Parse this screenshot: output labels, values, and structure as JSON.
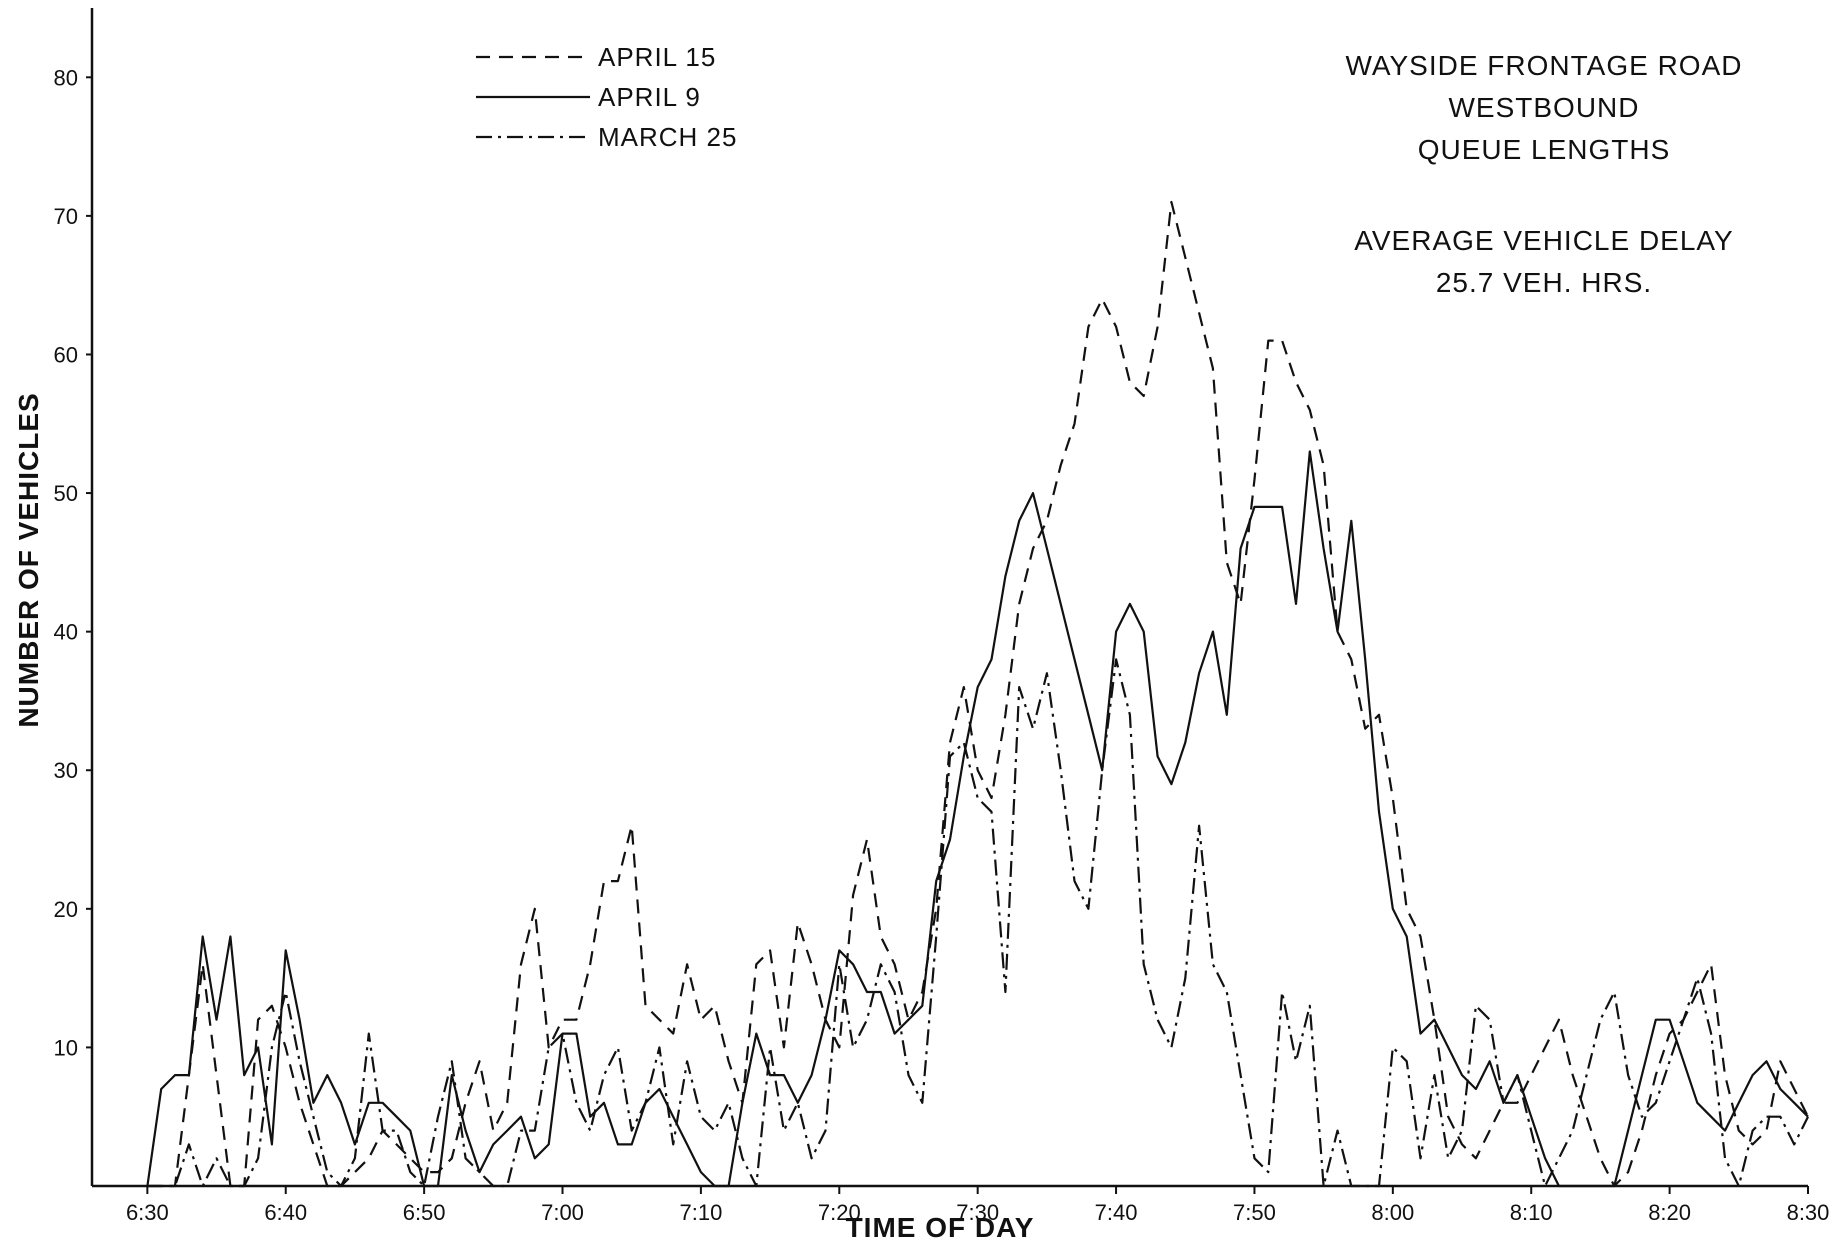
{
  "chart_data": {
    "type": "line",
    "title": "WAYSIDE FRONTAGE ROAD WESTBOUND QUEUE LENGTHS",
    "annotation": {
      "title_lines": [
        "WAYSIDE FRONTAGE ROAD",
        "WESTBOUND",
        "QUEUE LENGTHS"
      ],
      "delay_lines": [
        "AVERAGE VEHICLE DELAY",
        "25.7 VEH. HRS."
      ]
    },
    "xlabel": "TIME OF DAY",
    "ylabel": "NUMBER OF VEHICLES",
    "xlim": [
      "6:26",
      "8:30"
    ],
    "ylim": [
      0,
      85
    ],
    "x_ticks": [
      "6:30",
      "6:40",
      "6:50",
      "7:00",
      "7:10",
      "7:20",
      "7:30",
      "7:40",
      "7:50",
      "8:00",
      "8:10",
      "8:20",
      "8:30"
    ],
    "y_ticks": [
      10,
      20,
      30,
      40,
      50,
      60,
      70,
      80
    ],
    "grid": false,
    "legend_position": "top-left",
    "series": [
      {
        "name": "APRIL 15",
        "style": "dashed",
        "x": [
          "6:30",
          "6:31",
          "6:32",
          "6:33",
          "6:34",
          "6:35",
          "6:36",
          "6:37",
          "6:38",
          "6:39",
          "6:40",
          "6:41",
          "6:42",
          "6:43",
          "6:44",
          "6:45",
          "6:46",
          "6:47",
          "6:48",
          "6:49",
          "6:50",
          "6:51",
          "6:52",
          "6:53",
          "6:54",
          "6:55",
          "6:56",
          "6:57",
          "6:58",
          "6:59",
          "7:00",
          "7:01",
          "7:02",
          "7:03",
          "7:04",
          "7:05",
          "7:06",
          "7:07",
          "7:08",
          "7:09",
          "7:10",
          "7:11",
          "7:12",
          "7:13",
          "7:14",
          "7:15",
          "7:16",
          "7:17",
          "7:18",
          "7:19",
          "7:20",
          "7:21",
          "7:22",
          "7:23",
          "7:24",
          "7:25",
          "7:26",
          "7:27",
          "7:28",
          "7:29",
          "7:30",
          "7:31",
          "7:32",
          "7:33",
          "7:34",
          "7:35",
          "7:36",
          "7:37",
          "7:38",
          "7:39",
          "7:40",
          "7:41",
          "7:42",
          "7:43",
          "7:44",
          "7:45",
          "7:46",
          "7:47",
          "7:48",
          "7:49",
          "7:50",
          "7:51",
          "7:52",
          "7:53",
          "7:54",
          "7:55",
          "7:56",
          "7:57",
          "7:58",
          "7:59",
          "8:00",
          "8:01",
          "8:02",
          "8:03",
          "8:04",
          "8:05",
          "8:06",
          "8:07",
          "8:08",
          "8:09",
          "8:10",
          "8:11",
          "8:12",
          "8:13",
          "8:14",
          "8:15",
          "8:16",
          "8:17",
          "8:18",
          "8:19",
          "8:20",
          "8:21",
          "8:22",
          "8:23",
          "8:24",
          "8:25",
          "8:26",
          "8:27",
          "8:28",
          "8:29",
          "8:30"
        ],
        "values": [
          0,
          0,
          0,
          8,
          16,
          8,
          0,
          0,
          12,
          13,
          10,
          6,
          3,
          0,
          0,
          1,
          2,
          4,
          3,
          2,
          1,
          1,
          2,
          6,
          9,
          4,
          6,
          16,
          20,
          10,
          12,
          12,
          16,
          22,
          22,
          26,
          13,
          12,
          11,
          16,
          12,
          13,
          9,
          6,
          16,
          17,
          10,
          19,
          16,
          12,
          10,
          21,
          25,
          18,
          16,
          12,
          14,
          20,
          32,
          36,
          30,
          28,
          34,
          42,
          46,
          48,
          52,
          55,
          62,
          64,
          62,
          58,
          57,
          62,
          71,
          67,
          63,
          59,
          45,
          42,
          51,
          61,
          61,
          58,
          56,
          52,
          40,
          38,
          33,
          34,
          28,
          20,
          18,
          12,
          5,
          3,
          2,
          4,
          6,
          6,
          8,
          10,
          12,
          8,
          5,
          2,
          0,
          1,
          4,
          8,
          11,
          12,
          14,
          16,
          8,
          4,
          3,
          4,
          9,
          7,
          5
        ]
      },
      {
        "name": "APRIL 9",
        "style": "solid",
        "x": [
          "6:30",
          "6:31",
          "6:32",
          "6:33",
          "6:34",
          "6:35",
          "6:36",
          "6:37",
          "6:38",
          "6:39",
          "6:40",
          "6:41",
          "6:42",
          "6:43",
          "6:44",
          "6:45",
          "6:46",
          "6:47",
          "6:48",
          "6:49",
          "6:50",
          "6:51",
          "6:52",
          "6:53",
          "6:54",
          "6:55",
          "6:56",
          "6:57",
          "6:58",
          "6:59",
          "7:00",
          "7:01",
          "7:02",
          "7:03",
          "7:04",
          "7:05",
          "7:06",
          "7:07",
          "7:08",
          "7:09",
          "7:10",
          "7:11",
          "7:12",
          "7:13",
          "7:14",
          "7:15",
          "7:16",
          "7:17",
          "7:18",
          "7:19",
          "7:20",
          "7:21",
          "7:22",
          "7:23",
          "7:24",
          "7:25",
          "7:26",
          "7:27",
          "7:28",
          "7:29",
          "7:30",
          "7:31",
          "7:32",
          "7:33",
          "7:34",
          "7:35",
          "7:36",
          "7:37",
          "7:38",
          "7:39",
          "7:40",
          "7:41",
          "7:42",
          "7:43",
          "7:44",
          "7:45",
          "7:46",
          "7:47",
          "7:48",
          "7:49",
          "7:50",
          "7:51",
          "7:52",
          "7:53",
          "7:54",
          "7:55",
          "7:56",
          "7:57",
          "7:58",
          "7:59",
          "8:00",
          "8:01",
          "8:02",
          "8:03",
          "8:04",
          "8:05",
          "8:06",
          "8:07",
          "8:08",
          "8:09",
          "8:10",
          "8:11",
          "8:12",
          "8:13",
          "8:14",
          "8:15",
          "8:16",
          "8:17",
          "8:18",
          "8:19",
          "8:20",
          "8:21",
          "8:22",
          "8:23",
          "8:24",
          "8:25",
          "8:26",
          "8:27",
          "8:28",
          "8:29",
          "8:30"
        ],
        "values": [
          0,
          7,
          8,
          8,
          18,
          12,
          18,
          8,
          10,
          3,
          17,
          12,
          6,
          8,
          6,
          3,
          6,
          6,
          5,
          4,
          0,
          0,
          8,
          4,
          1,
          3,
          4,
          5,
          2,
          3,
          11,
          11,
          5,
          6,
          3,
          3,
          6,
          7,
          5,
          3,
          1,
          0,
          0,
          6,
          11,
          8,
          8,
          6,
          8,
          12,
          17,
          16,
          14,
          14,
          11,
          12,
          13,
          22,
          25,
          31,
          36,
          38,
          44,
          48,
          50,
          46,
          42,
          38,
          34,
          30,
          40,
          42,
          40,
          31,
          29,
          32,
          37,
          40,
          34,
          46,
          49,
          49,
          49,
          42,
          53,
          46,
          40,
          48,
          38,
          27,
          20,
          18,
          11,
          12,
          10,
          8,
          7,
          9,
          6,
          8,
          5,
          2,
          0,
          0,
          0,
          0,
          0,
          4,
          8,
          12,
          12,
          9,
          6,
          5,
          4,
          6,
          8,
          9,
          7,
          6,
          5
        ]
      },
      {
        "name": "MARCH 25",
        "style": "dash-dot",
        "x": [
          "6:30",
          "6:31",
          "6:32",
          "6:33",
          "6:34",
          "6:35",
          "6:36",
          "6:37",
          "6:38",
          "6:39",
          "6:40",
          "6:41",
          "6:42",
          "6:43",
          "6:44",
          "6:45",
          "6:46",
          "6:47",
          "6:48",
          "6:49",
          "6:50",
          "6:51",
          "6:52",
          "6:53",
          "6:54",
          "6:55",
          "6:56",
          "6:57",
          "6:58",
          "6:59",
          "7:00",
          "7:01",
          "7:02",
          "7:03",
          "7:04",
          "7:05",
          "7:06",
          "7:07",
          "7:08",
          "7:09",
          "7:10",
          "7:11",
          "7:12",
          "7:13",
          "7:14",
          "7:15",
          "7:16",
          "7:17",
          "7:18",
          "7:19",
          "7:20",
          "7:21",
          "7:22",
          "7:23",
          "7:24",
          "7:25",
          "7:26",
          "7:27",
          "7:28",
          "7:29",
          "7:30",
          "7:31",
          "7:32",
          "7:33",
          "7:34",
          "7:35",
          "7:36",
          "7:37",
          "7:38",
          "7:39",
          "7:40",
          "7:41",
          "7:42",
          "7:43",
          "7:44",
          "7:45",
          "7:46",
          "7:47",
          "7:48",
          "7:49",
          "7:50",
          "7:51",
          "7:52",
          "7:53",
          "7:54",
          "7:55",
          "7:56",
          "7:57",
          "7:58",
          "7:59",
          "8:00",
          "8:01",
          "8:02",
          "8:03",
          "8:04",
          "8:05",
          "8:06",
          "8:07",
          "8:08",
          "8:09",
          "8:10",
          "8:11",
          "8:12",
          "8:13",
          "8:14",
          "8:15",
          "8:16",
          "8:17",
          "8:18",
          "8:19",
          "8:20",
          "8:21",
          "8:22",
          "8:23",
          "8:24",
          "8:25",
          "8:26",
          "8:27",
          "8:28",
          "8:29",
          "8:30"
        ],
        "values": [
          0,
          0,
          0,
          3,
          0,
          2,
          0,
          0,
          2,
          10,
          14,
          9,
          5,
          1,
          0,
          2,
          11,
          4,
          4,
          1,
          0,
          5,
          9,
          2,
          1,
          0,
          0,
          4,
          4,
          10,
          11,
          6,
          4,
          8,
          10,
          4,
          6,
          10,
          3,
          9,
          5,
          4,
          6,
          2,
          0,
          10,
          4,
          6,
          2,
          4,
          16,
          10,
          12,
          16,
          14,
          8,
          6,
          18,
          31,
          32,
          28,
          27,
          14,
          36,
          33,
          37,
          30,
          22,
          20,
          30,
          38,
          34,
          16,
          12,
          10,
          15,
          26,
          16,
          14,
          8,
          2,
          1,
          14,
          9,
          13,
          0,
          4,
          0,
          0,
          0,
          10,
          9,
          2,
          8,
          2,
          4,
          13,
          12,
          6,
          8,
          4,
          0,
          2,
          4,
          8,
          12,
          14,
          8,
          5,
          6,
          9,
          12,
          15,
          11,
          2,
          0,
          4,
          5,
          5,
          3,
          5
        ]
      }
    ]
  }
}
